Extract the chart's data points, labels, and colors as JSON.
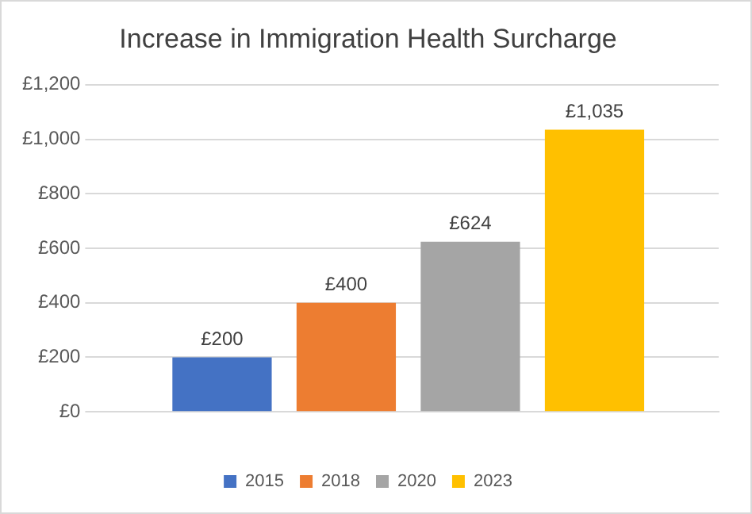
{
  "chart_data": {
    "type": "bar",
    "title": "Increase in Immigration Health Surcharge",
    "categories": [
      null
    ],
    "series": [
      {
        "name": "2015",
        "color": "#4472c4",
        "values": [
          200
        ],
        "value_labels": [
          "£200"
        ]
      },
      {
        "name": "2018",
        "color": "#ed7d31",
        "values": [
          400
        ],
        "value_labels": [
          "£400"
        ]
      },
      {
        "name": "2020",
        "color": "#a5a5a5",
        "values": [
          624
        ],
        "value_labels": [
          "£624"
        ]
      },
      {
        "name": "2023",
        "color": "#ffc000",
        "values": [
          1035
        ],
        "value_labels": [
          "£1,035"
        ]
      }
    ],
    "ylim": [
      0,
      1200
    ],
    "yticks": [
      {
        "value": 0,
        "label": "£0"
      },
      {
        "value": 200,
        "label": "£200"
      },
      {
        "value": 400,
        "label": "£400"
      },
      {
        "value": 600,
        "label": "£600"
      },
      {
        "value": 800,
        "label": "£800"
      },
      {
        "value": 1000,
        "label": "£1,000"
      },
      {
        "value": 1200,
        "label": "£1,200"
      }
    ],
    "grid": "y",
    "legend": "bottom"
  }
}
